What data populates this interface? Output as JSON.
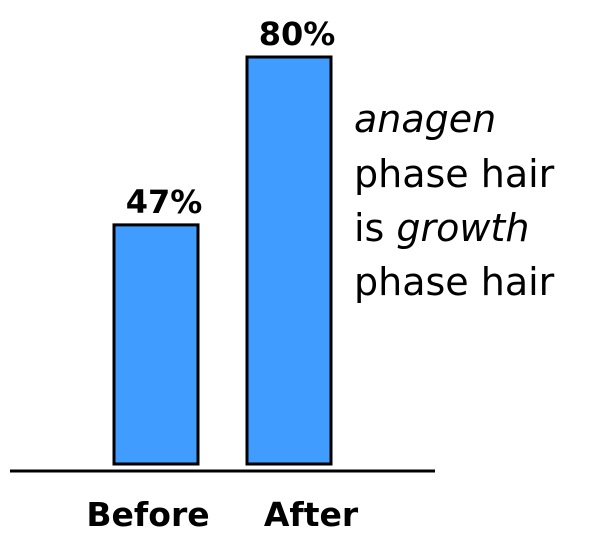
{
  "chart_data": {
    "type": "bar",
    "categories": [
      "Before",
      "After"
    ],
    "values": [
      47,
      80
    ],
    "value_labels": [
      "47%",
      "80%"
    ],
    "color": "#409cff",
    "annotation": [
      [
        "anagen"
      ],
      [
        "phase hair"
      ],
      [
        "is",
        "growth"
      ],
      [
        "phase hair"
      ]
    ]
  }
}
